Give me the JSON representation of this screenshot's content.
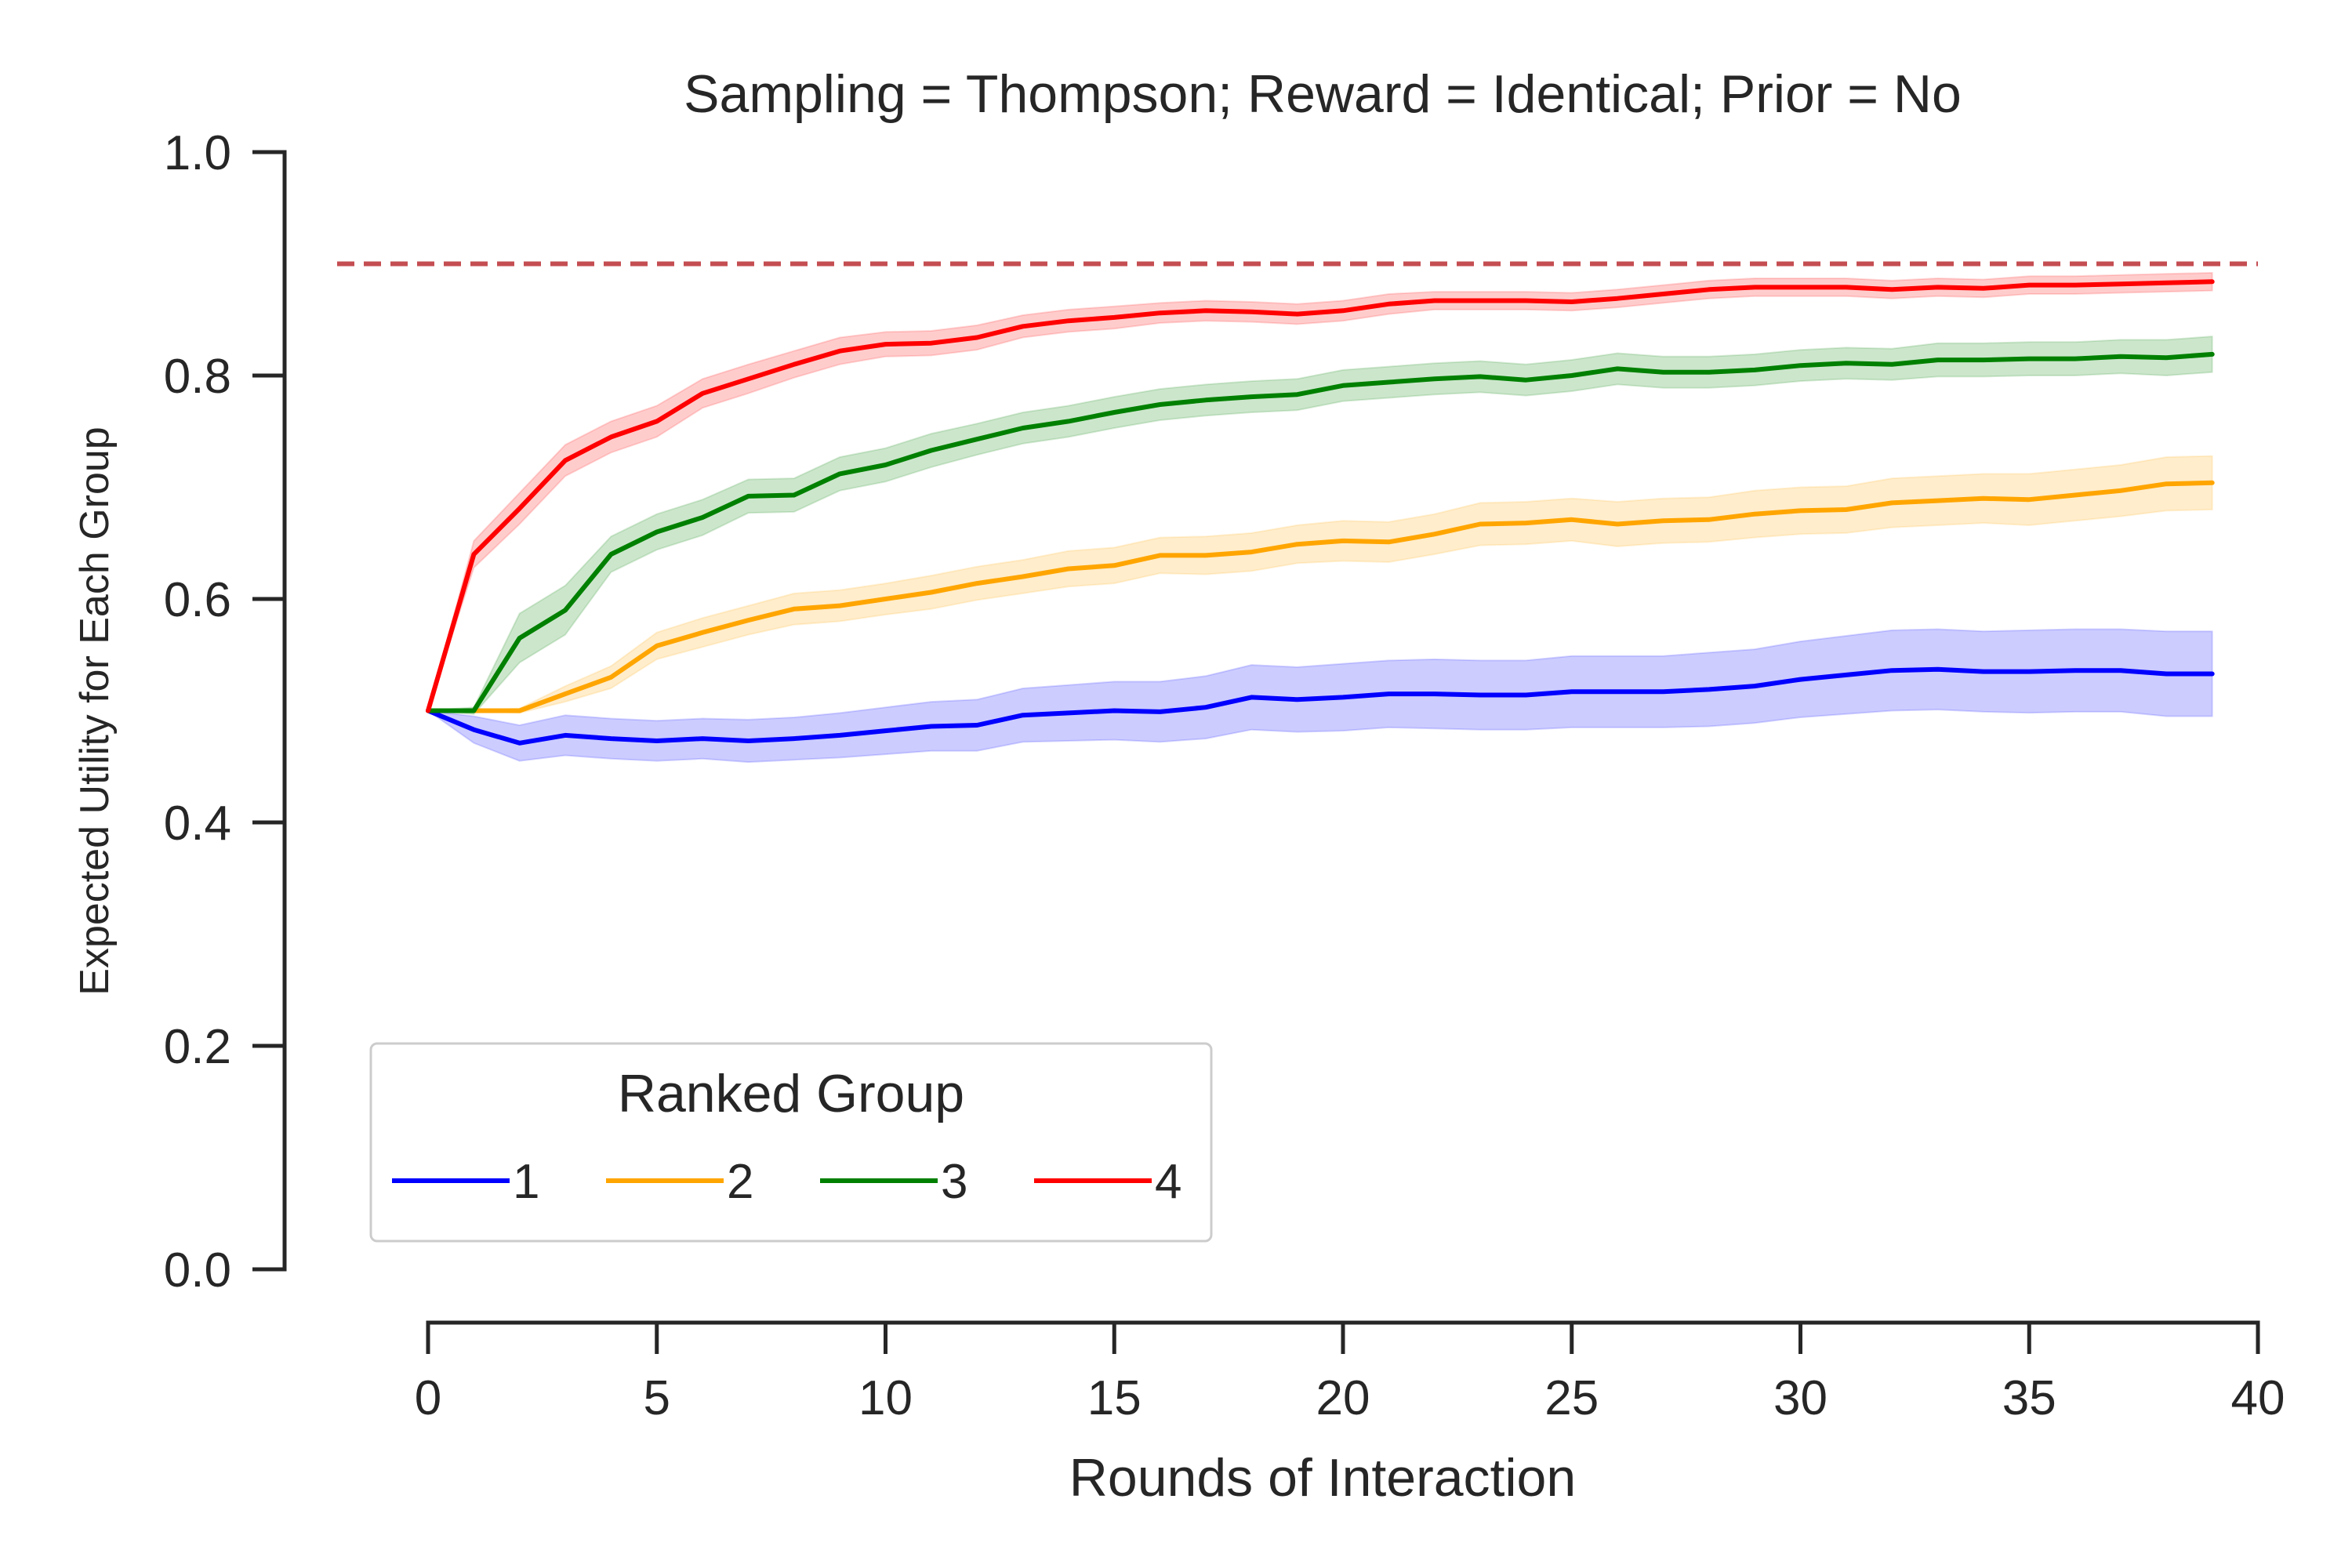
{
  "chart_data": {
    "type": "line",
    "title": "Sampling = Thompson; Reward = Identical; Prior = No",
    "xlabel": "Rounds of Interaction",
    "ylabel": "Expected Utility for Each Group",
    "xlim": [
      0,
      40
    ],
    "ylim": [
      0,
      1
    ],
    "xticks": [
      0,
      5,
      10,
      15,
      20,
      25,
      30,
      35,
      40
    ],
    "yticks": [
      0.0,
      0.2,
      0.4,
      0.6,
      0.8,
      1.0
    ],
    "xtick_labels": [
      "0",
      "5",
      "10",
      "15",
      "20",
      "25",
      "30",
      "35",
      "40"
    ],
    "ytick_labels": [
      "0.0",
      "0.2",
      "0.4",
      "0.6",
      "0.8",
      "1.0"
    ],
    "grid": false,
    "reference_line": {
      "y": 0.9,
      "style": "dashed",
      "color": "#c44e52"
    },
    "legend": {
      "title": "Ranked Group",
      "placement": "lower-left",
      "columns": 4
    },
    "x": [
      0,
      1,
      2,
      3,
      4,
      5,
      6,
      7,
      8,
      9,
      10,
      11,
      12,
      13,
      14,
      15,
      16,
      17,
      18,
      19,
      20,
      21,
      22,
      23,
      24,
      25,
      26,
      27,
      28,
      29,
      30,
      31,
      32,
      33,
      34,
      35,
      36,
      37,
      38,
      39
    ],
    "series": [
      {
        "name": "1",
        "color": "#0000ff",
        "values": [
          0.5,
          0.483,
          0.471,
          0.478,
          0.475,
          0.473,
          0.475,
          0.473,
          0.475,
          0.478,
          0.482,
          0.486,
          0.487,
          0.496,
          0.498,
          0.5,
          0.499,
          0.503,
          0.512,
          0.51,
          0.512,
          0.515,
          0.515,
          0.514,
          0.514,
          0.517,
          0.517,
          0.517,
          0.519,
          0.522,
          0.528,
          0.532,
          0.536,
          0.537,
          0.535,
          0.535,
          0.536,
          0.536,
          0.533,
          0.533
        ],
        "band_halfwidth": [
          0.0,
          0.012,
          0.016,
          0.018,
          0.018,
          0.018,
          0.018,
          0.019,
          0.019,
          0.02,
          0.021,
          0.022,
          0.023,
          0.024,
          0.025,
          0.026,
          0.027,
          0.028,
          0.029,
          0.029,
          0.03,
          0.03,
          0.031,
          0.031,
          0.031,
          0.032,
          0.032,
          0.032,
          0.033,
          0.033,
          0.034,
          0.035,
          0.036,
          0.036,
          0.036,
          0.037,
          0.037,
          0.037,
          0.038,
          0.038
        ]
      },
      {
        "name": "2",
        "color": "#ffa500",
        "values": [
          0.5,
          0.5,
          0.5,
          0.515,
          0.53,
          0.558,
          0.57,
          0.581,
          0.591,
          0.594,
          0.6,
          0.606,
          0.614,
          0.62,
          0.627,
          0.63,
          0.639,
          0.639,
          0.642,
          0.649,
          0.652,
          0.651,
          0.658,
          0.667,
          0.668,
          0.671,
          0.667,
          0.67,
          0.671,
          0.676,
          0.679,
          0.68,
          0.686,
          0.688,
          0.69,
          0.689,
          0.693,
          0.697,
          0.703,
          0.704
        ],
        "band_halfwidth": [
          0.0,
          0.0,
          0.002,
          0.007,
          0.01,
          0.012,
          0.013,
          0.013,
          0.014,
          0.014,
          0.014,
          0.015,
          0.015,
          0.015,
          0.016,
          0.016,
          0.016,
          0.017,
          0.017,
          0.017,
          0.018,
          0.018,
          0.018,
          0.019,
          0.019,
          0.019,
          0.02,
          0.02,
          0.02,
          0.021,
          0.021,
          0.021,
          0.022,
          0.022,
          0.022,
          0.023,
          0.023,
          0.023,
          0.024,
          0.024
        ]
      },
      {
        "name": "3",
        "color": "#008000",
        "values": [
          0.5,
          0.5,
          0.565,
          0.59,
          0.64,
          0.66,
          0.673,
          0.692,
          0.693,
          0.712,
          0.72,
          0.733,
          0.743,
          0.753,
          0.759,
          0.767,
          0.774,
          0.778,
          0.781,
          0.783,
          0.791,
          0.794,
          0.797,
          0.799,
          0.796,
          0.8,
          0.806,
          0.803,
          0.803,
          0.805,
          0.809,
          0.811,
          0.81,
          0.814,
          0.814,
          0.815,
          0.815,
          0.817,
          0.816,
          0.819
        ],
        "band_halfwidth": [
          0.0,
          0.003,
          0.022,
          0.022,
          0.016,
          0.016,
          0.016,
          0.015,
          0.015,
          0.015,
          0.015,
          0.015,
          0.014,
          0.014,
          0.014,
          0.014,
          0.014,
          0.014,
          0.014,
          0.014,
          0.014,
          0.014,
          0.014,
          0.014,
          0.014,
          0.014,
          0.014,
          0.014,
          0.014,
          0.014,
          0.014,
          0.014,
          0.014,
          0.015,
          0.015,
          0.015,
          0.015,
          0.015,
          0.016,
          0.016
        ]
      },
      {
        "name": "4",
        "color": "#ff0000",
        "values": [
          0.5,
          0.64,
          0.681,
          0.724,
          0.745,
          0.759,
          0.784,
          0.797,
          0.81,
          0.822,
          0.828,
          0.829,
          0.834,
          0.844,
          0.849,
          0.852,
          0.856,
          0.858,
          0.857,
          0.855,
          0.858,
          0.864,
          0.867,
          0.867,
          0.867,
          0.866,
          0.869,
          0.873,
          0.877,
          0.879,
          0.879,
          0.879,
          0.877,
          0.879,
          0.878,
          0.881,
          0.881,
          0.882,
          0.883,
          0.884
        ],
        "band_halfwidth": [
          0.0,
          0.012,
          0.014,
          0.014,
          0.014,
          0.014,
          0.013,
          0.013,
          0.012,
          0.012,
          0.011,
          0.011,
          0.011,
          0.01,
          0.01,
          0.01,
          0.009,
          0.009,
          0.009,
          0.009,
          0.009,
          0.009,
          0.008,
          0.008,
          0.008,
          0.008,
          0.008,
          0.008,
          0.008,
          0.008,
          0.008,
          0.008,
          0.008,
          0.008,
          0.008,
          0.008,
          0.008,
          0.008,
          0.008,
          0.008
        ]
      }
    ]
  }
}
